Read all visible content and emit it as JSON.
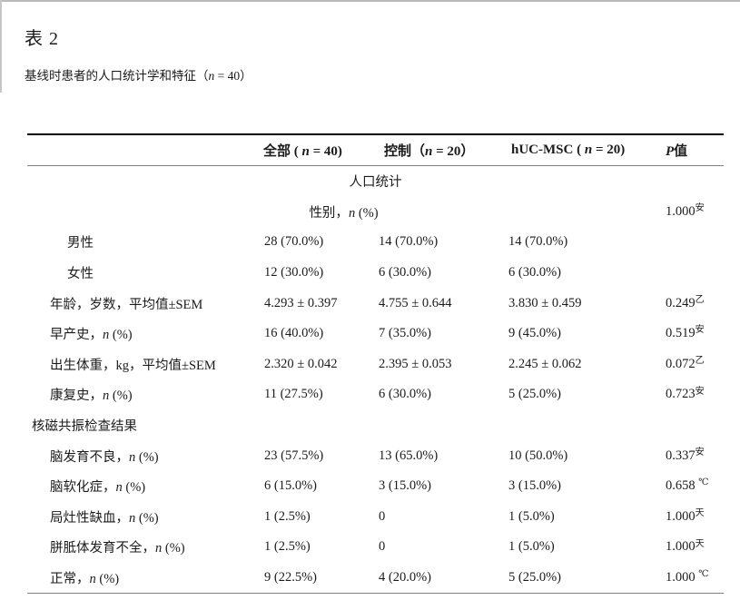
{
  "page": {
    "title": "表 2",
    "subtitle": {
      "pre": "基线时患者的人口统计学和特征（",
      "n": "n",
      "post": " = 40）"
    }
  },
  "table": {
    "columns": [
      {
        "pre": "全部 ( ",
        "n": "n",
        "post": " = 40)"
      },
      {
        "pre": "控制（",
        "n": "n",
        "post": " = 20）"
      },
      {
        "pre": "hUC-MSC ( ",
        "n": "n",
        "post": " = 20)"
      },
      {
        "pre": "",
        "n": "P",
        "post": "值"
      }
    ],
    "rows": [
      {
        "label_pre": "人口统计",
        "label_n": "",
        "label_post": "",
        "c1": "",
        "c2": "",
        "c3": "",
        "p": "",
        "p_sup": ""
      },
      {
        "label_pre": "性别，",
        "label_n": "n",
        "label_post": " (%)",
        "c1": "",
        "c2": "",
        "c3": "",
        "p": "1.000",
        "p_sup": "安"
      },
      {
        "label_pre": "男性",
        "label_n": "",
        "label_post": "",
        "c1": "28 (70.0%)",
        "c2": "14 (70.0%)",
        "c3": "14 (70.0%)",
        "p": "",
        "p_sup": ""
      },
      {
        "label_pre": "女性",
        "label_n": "",
        "label_post": "",
        "c1": "12 (30.0%)",
        "c2": "6 (30.0%)",
        "c3": "6 (30.0%)",
        "p": "",
        "p_sup": ""
      },
      {
        "label_pre": "年龄，岁数，平均值±SEM",
        "label_n": "",
        "label_post": "",
        "c1": "4.293 ± 0.397",
        "c2": "4.755 ± 0.644",
        "c3": "3.830 ± 0.459",
        "p": "0.249",
        "p_sup": "乙"
      },
      {
        "label_pre": "早产史，",
        "label_n": "n",
        "label_post": " (%)",
        "c1": "16 (40.0%)",
        "c2": "7 (35.0%)",
        "c3": "9 (45.0%)",
        "p": "0.519",
        "p_sup": "安"
      },
      {
        "label_pre": "出生体重，kg，平均值±SEM",
        "label_n": "",
        "label_post": "",
        "c1": "2.320 ± 0.042",
        "c2": "2.395 ± 0.053",
        "c3": "2.245 ± 0.062",
        "p": "0.072",
        "p_sup": "乙"
      },
      {
        "label_pre": "康复史，",
        "label_n": "n",
        "label_post": " (%)",
        "c1": "11 (27.5%)",
        "c2": "6 (30.0%)",
        "c3": "5 (25.0%)",
        "p": "0.723",
        "p_sup": "安"
      },
      {
        "label_pre": "核磁共振检查结果",
        "label_n": "",
        "label_post": "",
        "c1": "",
        "c2": "",
        "c3": "",
        "p": "",
        "p_sup": ""
      },
      {
        "label_pre": "脑发育不良，",
        "label_n": "n",
        "label_post": " (%)",
        "c1": "23 (57.5%)",
        "c2": "13 (65.0%)",
        "c3": "10 (50.0%)",
        "p": "0.337",
        "p_sup": "安"
      },
      {
        "label_pre": "脑软化症，",
        "label_n": "n",
        "label_post": " (%)",
        "c1": "6 (15.0%)",
        "c2": "3 (15.0%)",
        "c3": "3 (15.0%)",
        "p": "0.658 ",
        "p_sup": "℃"
      },
      {
        "label_pre": "局灶性缺血，",
        "label_n": "n",
        "label_post": " (%)",
        "c1": "1 (2.5%)",
        "c2": "0",
        "c3": "1 (5.0%)",
        "p": "1.000",
        "p_sup": "天"
      },
      {
        "label_pre": "胼胝体发育不全，",
        "label_n": "n",
        "label_post": " (%)",
        "c1": "1 (2.5%)",
        "c2": "0",
        "c3": "1 (5.0%)",
        "p": "1.000",
        "p_sup": "天"
      },
      {
        "label_pre": "正常，",
        "label_n": "n",
        "label_post": " (%)",
        "c1": "9 (22.5%)",
        "c2": "4 (20.0%)",
        "c3": "5 (25.0%)",
        "p": "1.000 ",
        "p_sup": "℃"
      }
    ]
  }
}
